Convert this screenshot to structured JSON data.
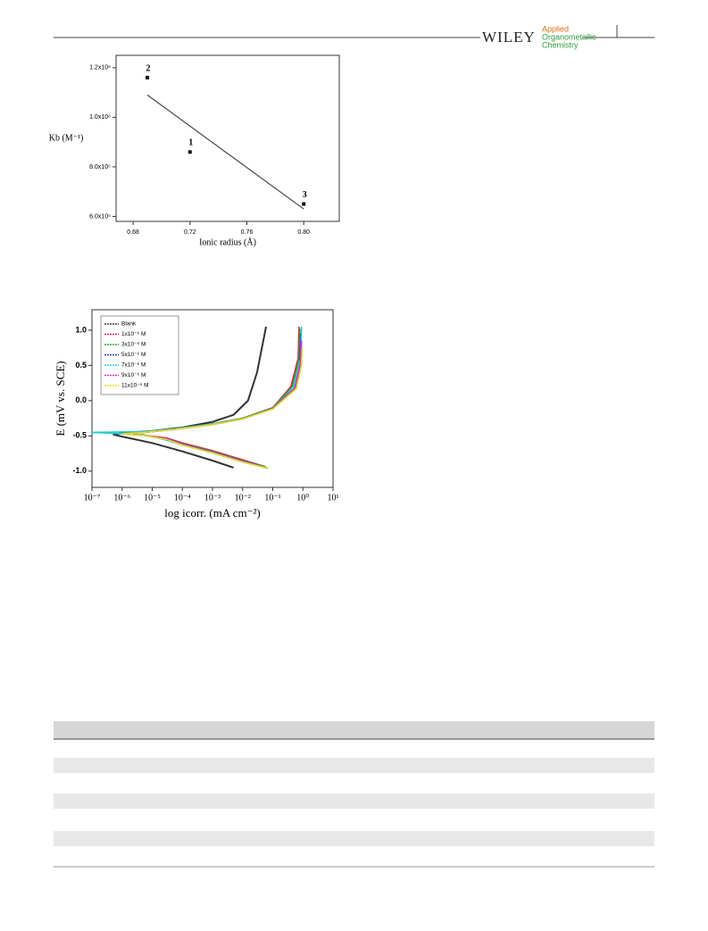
{
  "header": {
    "brand": "WILEY",
    "journal": [
      "Applied",
      "Organometallic",
      "Chemistry"
    ]
  },
  "chart_data": [
    {
      "type": "scatter",
      "xlabel": "Ionic radius (Å)",
      "ylabel": "Kb (M⁻¹)",
      "x": [
        0.69,
        0.72,
        0.8
      ],
      "values": [
        1160000,
        860000,
        650000
      ],
      "point_labels": [
        "2",
        "1",
        "3"
      ],
      "color": "#111111",
      "fit": {
        "x": [
          0.69,
          0.8
        ],
        "y": [
          1090000,
          630000
        ],
        "color": "#555555"
      },
      "xlim": [
        0.668,
        0.825
      ],
      "xticks": [
        {
          "value": 0.68,
          "label": "0.68"
        },
        {
          "value": 0.72,
          "label": "0.72"
        },
        {
          "value": 0.76,
          "label": "0.76"
        },
        {
          "value": 0.8,
          "label": "0.80"
        }
      ],
      "ylim": [
        580000,
        1250000
      ],
      "yticks": [
        {
          "value": 600000,
          "label": "6.0x10⁵"
        },
        {
          "value": 800000,
          "label": "8.0x10⁵"
        },
        {
          "value": 1000000,
          "label": "1.0x10⁶"
        },
        {
          "value": 1200000,
          "label": "1.2x10⁶"
        }
      ]
    },
    {
      "type": "line",
      "xlabel": "log icorr. (mA cm⁻²)",
      "ylabel": "E  (mV vs. SCE)",
      "xscale": "log",
      "legend": "top-left",
      "xlim": [
        1e-07,
        10
      ],
      "xticks": [
        {
          "value": 1e-07,
          "label": "10⁻⁷"
        },
        {
          "value": 1e-06,
          "label": "10⁻⁶"
        },
        {
          "value": 1e-05,
          "label": "10⁻⁵"
        },
        {
          "value": 0.0001,
          "label": "10⁻⁴"
        },
        {
          "value": 0.001,
          "label": "10⁻³"
        },
        {
          "value": 0.01,
          "label": "10⁻²"
        },
        {
          "value": 0.1,
          "label": "10⁻¹"
        },
        {
          "value": 1,
          "label": "10⁰"
        },
        {
          "value": 10,
          "label": "10¹"
        }
      ],
      "ylim": [
        -1.23,
        1.29
      ],
      "yticks": [
        {
          "value": -1,
          "label": "-1.0"
        },
        -0.5,
        {
          "value": 0,
          "label": "0.0"
        },
        0.5,
        {
          "value": 1,
          "label": "1.0"
        }
      ],
      "series": [
        {
          "name": "Blank",
          "color": "#333333",
          "x": [
            0.005,
            0.001,
            0.0001,
            1e-05,
            1e-06,
            5e-07,
            1e-06,
            1e-05,
            0.0001,
            0.001,
            0.005,
            0.015,
            0.03,
            0.06
          ],
          "values": [
            -0.95,
            -0.85,
            -0.72,
            -0.6,
            -0.51,
            -0.48,
            -0.46,
            -0.43,
            -0.38,
            -0.3,
            -0.2,
            0.0,
            0.4,
            1.05
          ]
        },
        {
          "name": "1x10⁻⁶ M",
          "color": "#e8174b",
          "x": [
            0.05,
            0.01,
            0.001,
            0.0001,
            3e-05,
            5e-06,
            1e-06,
            5e-06,
            5e-05,
            0.001,
            0.01,
            0.1,
            0.4,
            0.7,
            0.75
          ],
          "values": [
            -0.93,
            -0.84,
            -0.71,
            -0.6,
            -0.53,
            -0.49,
            -0.47,
            -0.45,
            -0.41,
            -0.33,
            -0.25,
            -0.1,
            0.2,
            0.6,
            1.05
          ]
        },
        {
          "name": "3x10⁻⁶ M",
          "color": "#22aa22",
          "x": [
            0.06,
            0.01,
            0.001,
            0.0001,
            3e-05,
            5e-06,
            1e-06,
            5e-06,
            5e-05,
            0.001,
            0.01,
            0.1,
            0.45,
            0.75,
            0.8
          ],
          "values": [
            -0.94,
            -0.85,
            -0.72,
            -0.61,
            -0.54,
            -0.49,
            -0.47,
            -0.45,
            -0.41,
            -0.33,
            -0.25,
            -0.1,
            0.2,
            0.6,
            1.02
          ]
        },
        {
          "name": "5x10⁻⁶ M",
          "color": "#3333cc",
          "x": [
            0.05,
            0.01,
            0.001,
            0.0001,
            3e-05,
            5e-06,
            1e-06,
            5e-06,
            5e-05,
            0.001,
            0.01,
            0.1,
            0.5,
            0.8,
            0.85
          ],
          "values": [
            -0.94,
            -0.86,
            -0.73,
            -0.62,
            -0.55,
            -0.49,
            -0.46,
            -0.44,
            -0.41,
            -0.33,
            -0.26,
            -0.11,
            0.18,
            0.55,
            0.95
          ]
        },
        {
          "name": "7x10⁻⁶ M",
          "color": "#22cccc",
          "x": [
            0.07,
            0.01,
            0.001,
            0.0001,
            3e-05,
            5e-06,
            1e-07,
            5e-06,
            5e-05,
            0.001,
            0.01,
            0.1,
            0.5,
            0.85,
            0.9
          ],
          "values": [
            -0.96,
            -0.87,
            -0.74,
            -0.63,
            -0.56,
            -0.48,
            -0.45,
            -0.44,
            -0.4,
            -0.33,
            -0.26,
            -0.11,
            0.18,
            0.6,
            1.05
          ]
        },
        {
          "name": "9x10⁻⁶ M",
          "color": "#dd22dd",
          "x": [
            0.06,
            0.01,
            0.001,
            0.0001,
            3e-05,
            5e-06,
            1e-06,
            5e-06,
            5e-05,
            0.001,
            0.01,
            0.1,
            0.55,
            0.85,
            0.9
          ],
          "values": [
            -0.95,
            -0.86,
            -0.73,
            -0.62,
            -0.54,
            -0.49,
            -0.47,
            -0.45,
            -0.41,
            -0.34,
            -0.26,
            -0.11,
            0.18,
            0.55,
            0.85
          ]
        },
        {
          "name": "11x10⁻⁶ M",
          "color": "#dddd22",
          "x": [
            0.07,
            0.01,
            0.001,
            0.0001,
            3e-05,
            5e-06,
            1e-06,
            5e-06,
            5e-05,
            0.001,
            0.01,
            0.1,
            0.6,
            0.9,
            0.95
          ],
          "values": [
            -0.96,
            -0.87,
            -0.74,
            -0.63,
            -0.55,
            -0.49,
            -0.47,
            -0.45,
            -0.41,
            -0.34,
            -0.26,
            -0.12,
            0.17,
            0.5,
            0.75
          ]
        }
      ]
    }
  ]
}
